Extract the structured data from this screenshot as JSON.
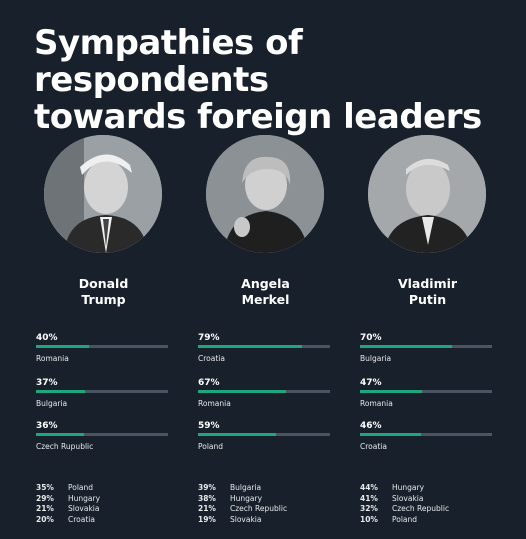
{
  "title": [
    "Sympathies of respondents",
    "towards foreign leaders"
  ],
  "colors": {
    "background": "#17202b",
    "bar_fill": "#1ea67e",
    "bar_track": "#4a5561"
  },
  "chart_data": {
    "type": "bar",
    "title": "Sympathies of respondents towards foreign leaders",
    "unit": "%",
    "leaders": [
      {
        "name": [
          "Donald",
          "Trump"
        ],
        "top": [
          {
            "pct_label": "40%",
            "value": 40,
            "country": "Romania"
          },
          {
            "pct_label": "37%",
            "value": 37,
            "country": "Bulgaria"
          },
          {
            "pct_label": "36%",
            "value": 36,
            "country": "Czech Rupublic"
          }
        ],
        "others": [
          {
            "pct_label": "35%",
            "country": "Poland"
          },
          {
            "pct_label": "29%",
            "country": "Hungary"
          },
          {
            "pct_label": "21%",
            "country": "Slovakia"
          },
          {
            "pct_label": "20%",
            "country": "Croatia"
          }
        ]
      },
      {
        "name": [
          "Angela",
          "Merkel"
        ],
        "top": [
          {
            "pct_label": "79%",
            "value": 79,
            "country": "Croatia"
          },
          {
            "pct_label": "67%",
            "value": 67,
            "country": "Romania"
          },
          {
            "pct_label": "59%",
            "value": 59,
            "country": "Poland"
          }
        ],
        "others": [
          {
            "pct_label": "39%",
            "country": "Bulgaria"
          },
          {
            "pct_label": "38%",
            "country": "Hungary"
          },
          {
            "pct_label": "21%",
            "country": "Czech Republic"
          },
          {
            "pct_label": "19%",
            "country": "Slovakia"
          }
        ]
      },
      {
        "name": [
          "Vladimir",
          "Putin"
        ],
        "top": [
          {
            "pct_label": "70%",
            "value": 70,
            "country": "Bulgaria"
          },
          {
            "pct_label": "47%",
            "value": 47,
            "country": "Romania"
          },
          {
            "pct_label": "46%",
            "value": 46,
            "country": "Croatia"
          }
        ],
        "others": [
          {
            "pct_label": "44%",
            "country": "Hungary"
          },
          {
            "pct_label": "41%",
            "country": "Slovakia"
          },
          {
            "pct_label": "32%",
            "country": "Czech Republic"
          },
          {
            "pct_label": "10%",
            "country": "Poland"
          }
        ]
      }
    ]
  }
}
